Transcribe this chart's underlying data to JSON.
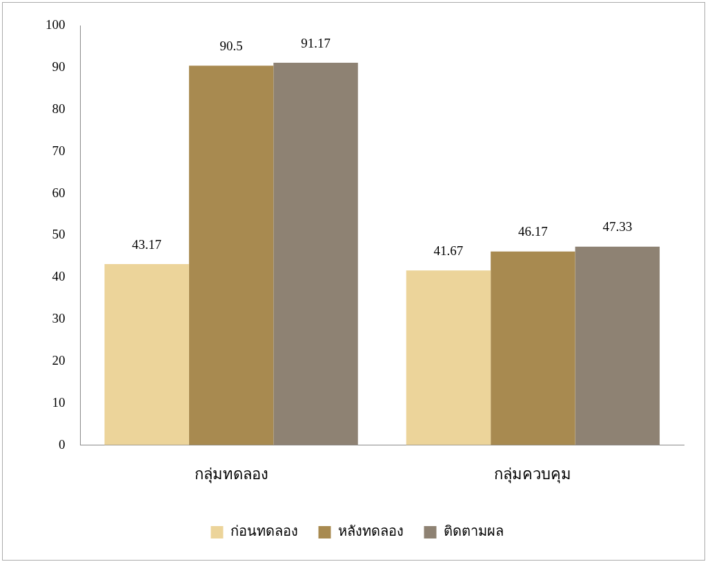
{
  "chart_data": {
    "type": "bar",
    "categories": [
      "กลุ่มทดลอง",
      "กลุ่มควบคุม"
    ],
    "series": [
      {
        "name": "ก่อนทดลอง",
        "color": "#ecd49a",
        "values": [
          43.17,
          41.67
        ]
      },
      {
        "name": "หลังทดลอง",
        "color": "#a88a50",
        "values": [
          90.5,
          46.17
        ]
      },
      {
        "name": "ติดตามผล",
        "color": "#8e8273",
        "values": [
          91.17,
          47.33
        ]
      }
    ],
    "ylim": [
      0,
      100
    ],
    "yticks": [
      0,
      10,
      20,
      30,
      40,
      50,
      60,
      70,
      80,
      90,
      100
    ],
    "grid": false,
    "legend": "bottom",
    "data_labels": true
  }
}
